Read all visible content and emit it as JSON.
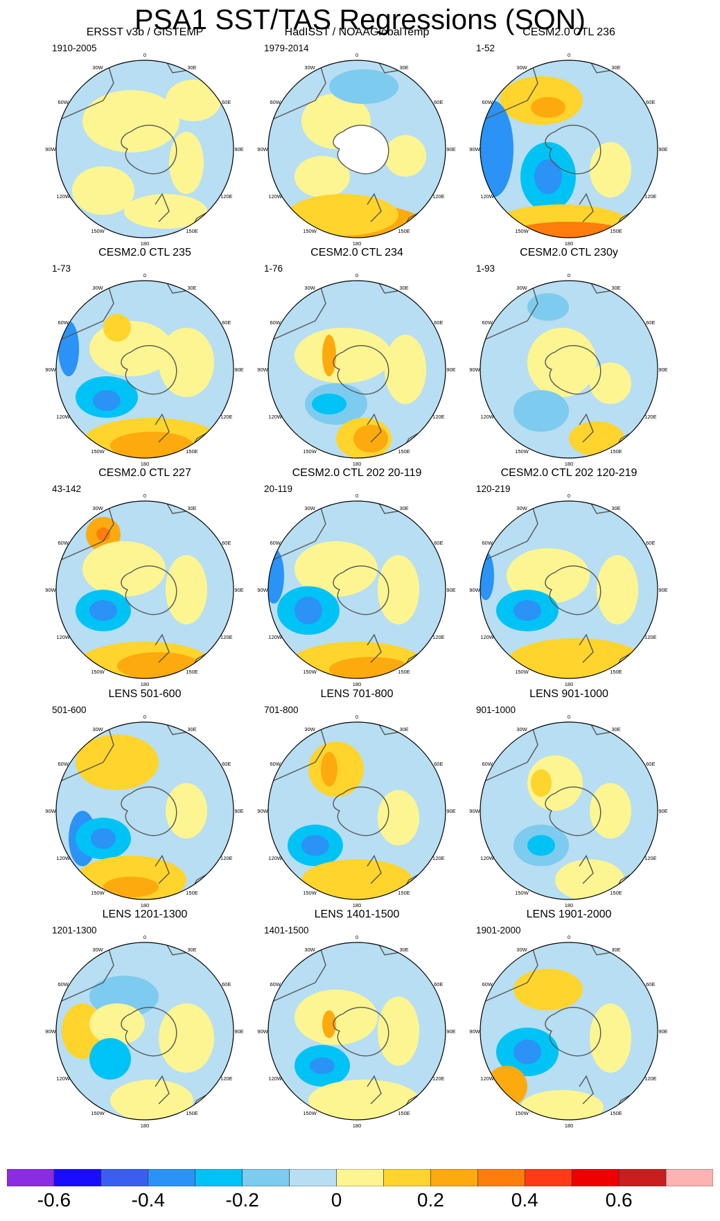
{
  "title": "PSA1 SST/TAS Regressions (SON)",
  "lon_labels": [
    "0",
    "30E",
    "60E",
    "90E",
    "120E",
    "150E",
    "180",
    "150W",
    "120W",
    "90W",
    "60W",
    "30W"
  ],
  "panels": [
    {
      "title": "ERSST v3b / GISTEMP",
      "period": "1910-2005"
    },
    {
      "title": "HadISST / NOAAGlobalTemp",
      "period": "1979-2014"
    },
    {
      "title": "CESM2.0 CTL 236",
      "period": "1-52"
    },
    {
      "title": "CESM2.0 CTL 235",
      "period": "1-73"
    },
    {
      "title": "CESM2.0 CTL 234",
      "period": "1-76"
    },
    {
      "title": "CESM2.0 CTL 230y",
      "period": "1-93"
    },
    {
      "title": "CESM2.0 CTL 227",
      "period": "43-142"
    },
    {
      "title": "CESM2.0 CTL 202 20-119",
      "period": "20-119"
    },
    {
      "title": "CESM2.0 CTL 202 120-219",
      "period": "120-219"
    },
    {
      "title": "LENS 501-600",
      "period": "501-600"
    },
    {
      "title": "LENS 701-800",
      "period": "701-800"
    },
    {
      "title": "LENS 901-1000",
      "period": "901-1000"
    },
    {
      "title": "LENS 1201-1300",
      "period": "1201-1300"
    },
    {
      "title": "LENS 1401-1500",
      "period": "1401-1500"
    },
    {
      "title": "LENS 1901-2000",
      "period": "1901-2000"
    }
  ],
  "colorbar": {
    "colors": [
      "#8b2be2",
      "#1a0dff",
      "#3b5ef0",
      "#2a93f5",
      "#00c3f5",
      "#7dcbee",
      "#b7def2",
      "#fdf591",
      "#ffd42c",
      "#fdaa0f",
      "#ff7d0a",
      "#ff3a16",
      "#ee0000",
      "#c81e1e",
      "#ffb2b2"
    ],
    "tick_labels": [
      "-0.6",
      "-0.4",
      "-0.2",
      "0",
      "0.2",
      "0.4",
      "0.6"
    ],
    "tick_values": [
      -0.6,
      -0.4,
      -0.2,
      0,
      0.2,
      0.4,
      0.6
    ]
  }
}
